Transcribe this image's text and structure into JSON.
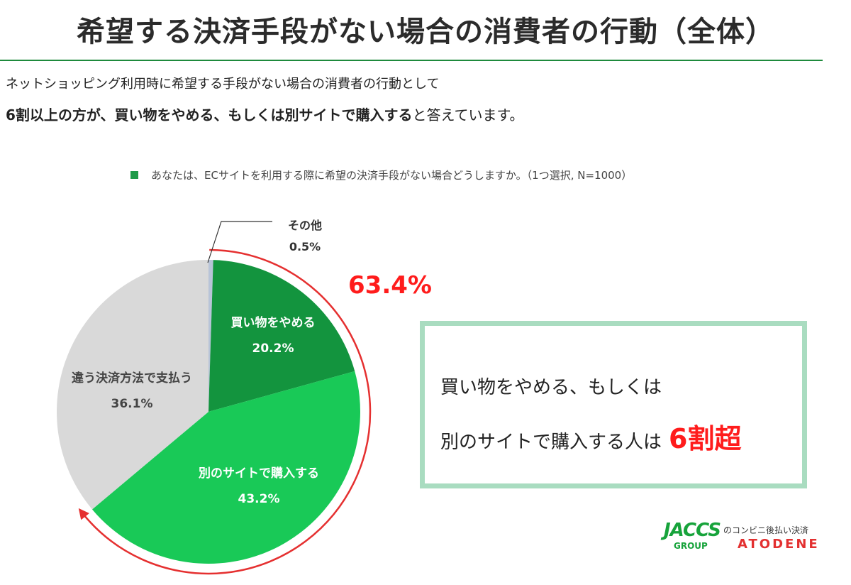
{
  "header": {
    "title": "希望する決済手段がない場合の消費者の行動（全体）",
    "subtitle_line1": "ネットショッピング利用時に希望する手段がない場合の消費者の行動として",
    "subtitle_line2_bold": "6割以上の方が、買い物をやめる、もしくは別サイトで購入する",
    "subtitle_line2_rest": "と答えています。"
  },
  "colors": {
    "stop": "#13943e",
    "other_site": "#19c957",
    "different_method": "#d9d9d9",
    "other": "#b8c4d8",
    "accent_red": "#ff1c1c",
    "brand_green": "#17a33b",
    "callout_border": "#a9dcc0"
  },
  "chart_data": {
    "type": "pie",
    "title": "あなたは、ECサイトを利用する際に希望の決済手段がない場合どうしますか。（1つ選択, N=1000）",
    "slices": [
      {
        "label": "その他",
        "value": 0.5,
        "display": "0.5%"
      },
      {
        "label": "買い物をやめる",
        "value": 20.2,
        "display": "20.2%"
      },
      {
        "label": "別のサイトで購入する",
        "value": 43.2,
        "display": "43.2%"
      },
      {
        "label": "違う決済方法で支払う",
        "value": 36.1,
        "display": "36.1%"
      }
    ],
    "combined_annotation": "63.4%"
  },
  "callout": {
    "line1": "買い物をやめる、もしくは",
    "line2": "別のサイトで購入する人は",
    "highlight": "6割超"
  },
  "logo": {
    "jaccs": "JACCS",
    "group": "GROUP",
    "tagline": "のコンビニ後払い決済",
    "atodene": "ATODENE"
  }
}
